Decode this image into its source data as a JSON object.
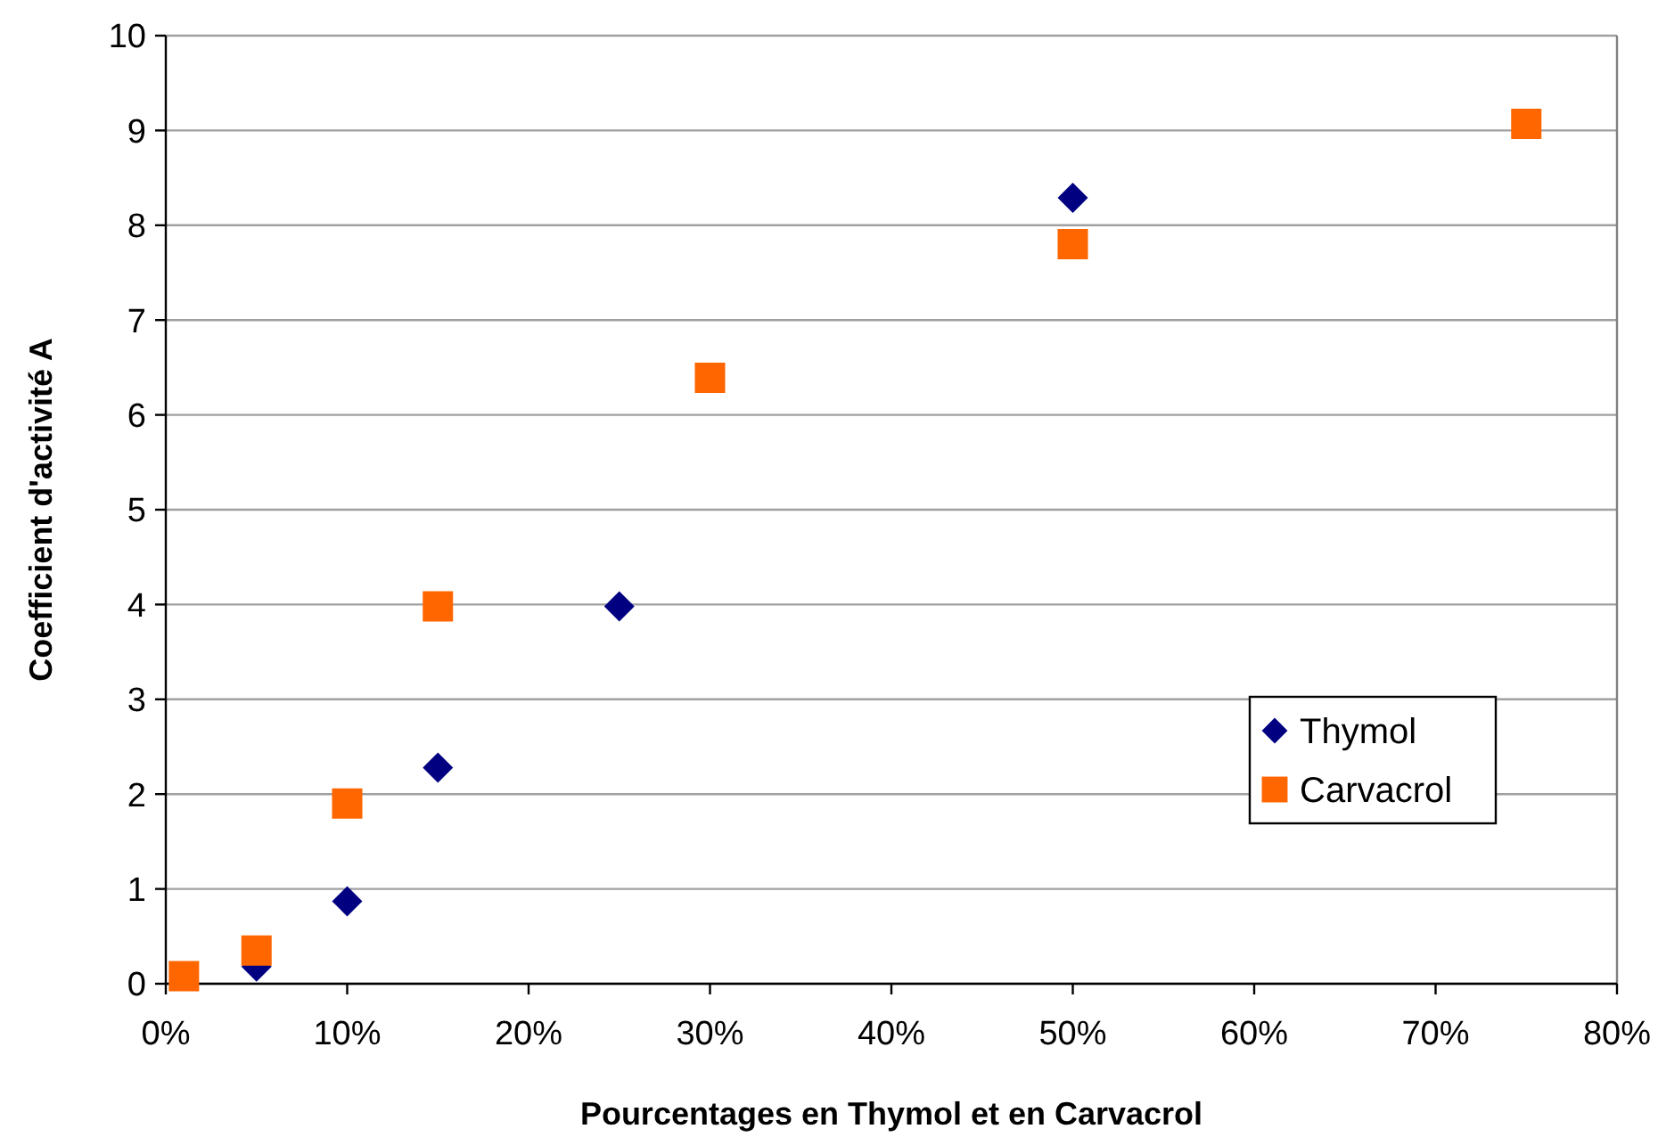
{
  "chart_data": {
    "type": "scatter",
    "xlabel": "Pourcentages en Thymol et en Carvacrol",
    "ylabel": "Coefficient d'activité A",
    "series": [
      {
        "name": "Thymol",
        "color": "#000080",
        "marker": "diamond",
        "x": [
          5,
          10,
          15,
          25,
          50
        ],
        "values": [
          0.18,
          0.87,
          2.28,
          3.98,
          8.29
        ]
      },
      {
        "name": "Carvacrol",
        "color": "#ff6600",
        "marker": "square",
        "x": [
          1,
          5,
          10,
          15,
          30,
          50,
          75
        ],
        "values": [
          0.08,
          0.35,
          1.9,
          3.98,
          6.39,
          7.8,
          9.07
        ]
      }
    ],
    "xlim": [
      0,
      80
    ],
    "xticks": [
      {
        "value": 0,
        "label": "0%"
      },
      {
        "value": 10,
        "label": "10%"
      },
      {
        "value": 20,
        "label": "20%"
      },
      {
        "value": 30,
        "label": "30%"
      },
      {
        "value": 40,
        "label": "40%"
      },
      {
        "value": 50,
        "label": "50%"
      },
      {
        "value": 60,
        "label": "60%"
      },
      {
        "value": 70,
        "label": "70%"
      },
      {
        "value": 80,
        "label": "80%"
      }
    ],
    "ylim": [
      0,
      10
    ],
    "yticks": [
      0,
      1,
      2,
      3,
      4,
      5,
      6,
      7,
      8,
      9,
      10
    ],
    "grid": "y",
    "legend": "right"
  }
}
